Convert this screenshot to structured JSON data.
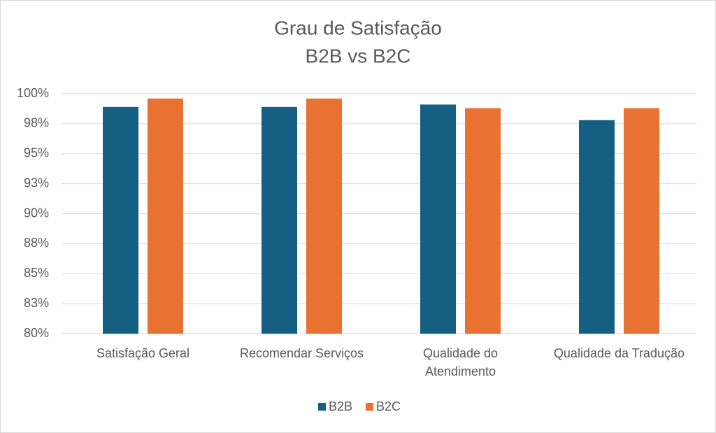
{
  "chart_data": {
    "type": "bar",
    "title": "Grau de Satisfação",
    "subtitle": "B2B vs B2C",
    "categories": [
      "Satisfação Geral",
      "Recomendar Serviços",
      "Qualidade do Atendimento",
      "Qualidade da Tradução"
    ],
    "series": [
      {
        "name": "B2B",
        "color": "#156082",
        "values": [
          98.9,
          98.9,
          99.1,
          97.8
        ]
      },
      {
        "name": "B2C",
        "color": "#e97132",
        "values": [
          99.6,
          99.6,
          98.8,
          98.8
        ]
      }
    ],
    "ylim": [
      80,
      100
    ],
    "yticks": [
      {
        "value": 80,
        "label": "80%"
      },
      {
        "value": 82.5,
        "label": "83%"
      },
      {
        "value": 85,
        "label": "85%"
      },
      {
        "value": 87.5,
        "label": "88%"
      },
      {
        "value": 90,
        "label": "90%"
      },
      {
        "value": 92.5,
        "label": "93%"
      },
      {
        "value": 95,
        "label": "95%"
      },
      {
        "value": 97.5,
        "label": "98%"
      },
      {
        "value": 100,
        "label": "100%"
      }
    ],
    "grid": true,
    "legend": "bottom"
  }
}
